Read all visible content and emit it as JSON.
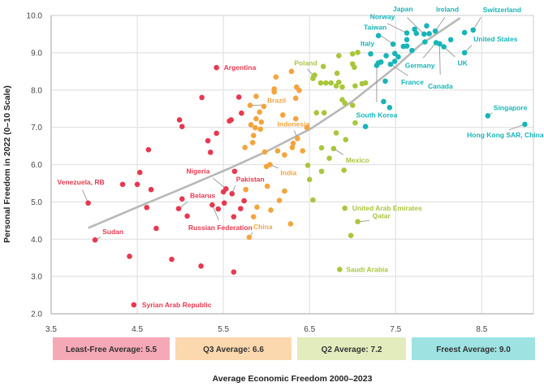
{
  "chart_data": {
    "type": "scatter",
    "title": "",
    "xlabel": "Average Economic Freedom 2000–2023",
    "ylabel": "Personal Freedom in 2022 (0–10 Scale)",
    "xlim": [
      3.5,
      9.1
    ],
    "ylim": [
      2.0,
      10.0
    ],
    "xticks": [
      "3.5",
      "4.5",
      "5.5",
      "6.5",
      "7.5",
      "8.5"
    ],
    "yticks": [
      "2.0",
      "3.0",
      "4.0",
      "5.0",
      "6.0",
      "7.0",
      "8.0",
      "9.0",
      "10.0"
    ],
    "grid": true,
    "colors": {
      "least_free": "#e63950",
      "q3": "#f4a43c",
      "q2": "#a9c63c",
      "freest": "#17b5b8",
      "trend": "#b8b8b8"
    },
    "band_colors": {
      "least_free": "#f5a9b6",
      "q3": "#fcd8ae",
      "q2": "#e2ecbd",
      "freest": "#9ee2e2"
    },
    "quartile_averages": [
      {
        "group": "least_free",
        "label": "Least-Free Average: 5.5",
        "value": 5.5
      },
      {
        "group": "q3",
        "label": "Q3 Average: 6.6",
        "value": 6.6
      },
      {
        "group": "q2",
        "label": "Q2 Average: 7.2",
        "value": 7.2
      },
      {
        "group": "freest",
        "label": "Freest Average: 9.0",
        "value": 9.0
      }
    ],
    "trend_line": [
      [
        3.94,
        4.31
      ],
      [
        4.5,
        4.86
      ],
      [
        5.0,
        5.34
      ],
      [
        5.55,
        5.88
      ],
      [
        6.0,
        6.35
      ],
      [
        6.52,
        6.97
      ],
      [
        7.0,
        7.7
      ],
      [
        7.5,
        8.62
      ],
      [
        7.78,
        9.2
      ],
      [
        8.24,
        9.92
      ]
    ],
    "series": [
      {
        "name": "least_free",
        "points": [
          [
            5.25,
            7.8
          ],
          [
            5.68,
            7.81
          ],
          [
            5.71,
            7.38
          ],
          [
            5.57,
            7.17
          ],
          [
            4.99,
            7.2
          ],
          [
            5.02,
            7.02
          ],
          [
            5.42,
            6.84
          ],
          [
            5.32,
            6.64
          ],
          [
            5.35,
            6.33
          ],
          [
            4.63,
            6.4
          ],
          [
            4.53,
            5.79
          ],
          [
            5.63,
            5.82
          ],
          [
            4.33,
            5.47
          ],
          [
            4.5,
            5.47
          ],
          [
            4.66,
            5.33
          ],
          [
            4.61,
            4.85
          ],
          [
            5.02,
            5.08
          ],
          [
            5.08,
            4.62
          ],
          [
            5.44,
            4.81
          ],
          [
            5.51,
            4.97
          ],
          [
            5.5,
            5.27
          ],
          [
            5.74,
            5.03
          ],
          [
            5.7,
            4.82
          ],
          [
            5.62,
            4.6
          ],
          [
            4.72,
            4.29
          ],
          [
            4.41,
            3.54
          ],
          [
            4.9,
            3.46
          ],
          [
            5.24,
            3.28
          ],
          [
            5.62,
            3.12
          ],
          [
            5.59,
            7.2
          ]
        ]
      },
      {
        "name": "q3",
        "points": [
          [
            6.11,
            8.35
          ],
          [
            6.29,
            8.5
          ],
          [
            6.09,
            8.03
          ],
          [
            6.09,
            7.95
          ],
          [
            6.35,
            8.08
          ],
          [
            6.38,
            7.99
          ],
          [
            5.88,
            7.83
          ],
          [
            5.97,
            7.56
          ],
          [
            6.34,
            7.78
          ],
          [
            5.92,
            7.41
          ],
          [
            6.19,
            7.33
          ],
          [
            5.88,
            7.23
          ],
          [
            5.94,
            7.14
          ],
          [
            6.34,
            7.23
          ],
          [
            5.82,
            7.07
          ],
          [
            5.87,
            6.99
          ],
          [
            5.93,
            6.95
          ],
          [
            6.47,
            6.99
          ],
          [
            5.85,
            6.78
          ],
          [
            5.84,
            6.59
          ],
          [
            6.31,
            6.57
          ],
          [
            6.3,
            6.46
          ],
          [
            5.75,
            6.46
          ],
          [
            5.98,
            6.34
          ],
          [
            6.13,
            6.37
          ],
          [
            6.21,
            6.26
          ],
          [
            6.42,
            6.37
          ],
          [
            6.0,
            5.95
          ],
          [
            6.01,
            5.42
          ],
          [
            5.76,
            5.33
          ],
          [
            6.21,
            5.29
          ],
          [
            6.15,
            5.04
          ],
          [
            5.89,
            4.86
          ],
          [
            6.05,
            4.78
          ],
          [
            5.85,
            4.6
          ],
          [
            6.28,
            4.41
          ]
        ]
      },
      {
        "name": "q2",
        "points": [
          [
            6.84,
            8.92
          ],
          [
            7.0,
            8.97
          ],
          [
            7.06,
            9.01
          ],
          [
            6.66,
            8.63
          ],
          [
            7.0,
            8.7
          ],
          [
            7.02,
            8.61
          ],
          [
            6.56,
            8.4
          ],
          [
            6.54,
            8.31
          ],
          [
            6.82,
            8.45
          ],
          [
            6.63,
            8.19
          ],
          [
            6.69,
            8.19
          ],
          [
            6.75,
            8.19
          ],
          [
            6.84,
            8.21
          ],
          [
            6.81,
            8.11
          ],
          [
            6.88,
            8.08
          ],
          [
            7.03,
            8.11
          ],
          [
            7.11,
            8.17
          ],
          [
            7.15,
            8.19
          ],
          [
            6.88,
            7.74
          ],
          [
            6.91,
            7.65
          ],
          [
            7.0,
            7.59
          ],
          [
            6.58,
            7.39
          ],
          [
            6.67,
            7.39
          ],
          [
            7.03,
            7.12
          ],
          [
            6.81,
            6.85
          ],
          [
            6.92,
            6.67
          ],
          [
            6.64,
            6.45
          ],
          [
            6.78,
            6.43
          ],
          [
            6.73,
            6.17
          ],
          [
            6.48,
            5.98
          ],
          [
            6.64,
            5.82
          ],
          [
            6.9,
            5.85
          ],
          [
            6.5,
            5.6
          ],
          [
            6.54,
            5.05
          ],
          [
            6.98,
            4.1
          ]
        ]
      },
      {
        "name": "freest",
        "points": [
          [
            7.86,
            9.72
          ],
          [
            7.72,
            9.63
          ],
          [
            7.74,
            9.52
          ],
          [
            7.89,
            9.51
          ],
          [
            8.3,
            9.54
          ],
          [
            8.14,
            9.35
          ],
          [
            7.63,
            9.35
          ],
          [
            7.3,
            9.46
          ],
          [
            7.84,
            9.29
          ],
          [
            7.59,
            9.17
          ],
          [
            7.63,
            9.18
          ],
          [
            7.69,
            9.06
          ],
          [
            7.39,
            8.92
          ],
          [
            7.49,
            8.98
          ],
          [
            7.53,
            8.89
          ],
          [
            7.49,
            8.77
          ],
          [
            7.3,
            8.73
          ],
          [
            7.33,
            8.75
          ],
          [
            7.38,
            8.24
          ],
          [
            7.36,
            7.69
          ],
          [
            7.43,
            7.53
          ],
          [
            7.15,
            7.02
          ]
        ]
      }
    ],
    "labeled_points": [
      {
        "name": "Argentina",
        "group": "least_free",
        "x": 5.42,
        "y": 8.6
      },
      {
        "name": "Venezuela, RB",
        "group": "least_free",
        "x": 3.93,
        "y": 4.97
      },
      {
        "name": "Sudan",
        "group": "least_free",
        "x": 4.01,
        "y": 3.98
      },
      {
        "name": "Syrian Arab Republic",
        "group": "least_free",
        "x": 4.46,
        "y": 2.24
      },
      {
        "name": "Nigeria",
        "group": "least_free",
        "x": 5.53,
        "y": 5.35
      },
      {
        "name": "Pakistan",
        "group": "least_free",
        "x": 5.6,
        "y": 5.22
      },
      {
        "name": "Belarus",
        "group": "least_free",
        "x": 4.98,
        "y": 4.82
      },
      {
        "name": "Russian Federation",
        "group": "least_free",
        "x": 5.37,
        "y": 4.92
      },
      {
        "name": "China",
        "group": "q3",
        "x": 5.8,
        "y": 4.05
      },
      {
        "name": "India",
        "group": "q3",
        "x": 6.04,
        "y": 6.0
      },
      {
        "name": "Indonesia",
        "group": "q3",
        "x": 6.36,
        "y": 6.7
      },
      {
        "name": "Brazil",
        "group": "q3",
        "x": 5.81,
        "y": 7.59
      },
      {
        "name": "Poland",
        "group": "q2",
        "x": 6.55,
        "y": 8.38
      },
      {
        "name": "Mexico",
        "group": "q2",
        "x": 6.78,
        "y": 6.43
      },
      {
        "name": "United Arab Emirates",
        "group": "q2",
        "x": 6.91,
        "y": 4.83
      },
      {
        "name": "Qatar",
        "group": "q2",
        "x": 7.06,
        "y": 4.47
      },
      {
        "name": "Saudi Arabia",
        "group": "q2",
        "x": 6.85,
        "y": 3.19
      },
      {
        "name": "South Korea",
        "group": "freest",
        "x": 7.28,
        "y": 8.66
      },
      {
        "name": "Italy",
        "group": "freest",
        "x": 7.21,
        "y": 8.97
      },
      {
        "name": "Taiwan",
        "group": "freest",
        "x": 7.47,
        "y": 9.23
      },
      {
        "name": "Norway",
        "group": "freest",
        "x": 7.63,
        "y": 9.53
      },
      {
        "name": "Japan",
        "group": "freest",
        "x": 7.83,
        "y": 9.5
      },
      {
        "name": "Ireland",
        "group": "freest",
        "x": 7.96,
        "y": 9.58
      },
      {
        "name": "Switzerland",
        "group": "freest",
        "x": 8.4,
        "y": 9.61
      },
      {
        "name": "United States",
        "group": "freest",
        "x": 8.3,
        "y": 9.0
      },
      {
        "name": "Germany",
        "group": "freest",
        "x": 7.97,
        "y": 9.27
      },
      {
        "name": "UK",
        "group": "freest",
        "x": 8.06,
        "y": 9.16
      },
      {
        "name": "Canada",
        "group": "freest",
        "x": 8.01,
        "y": 9.24
      },
      {
        "name": "France",
        "group": "freest",
        "x": 7.44,
        "y": 8.69
      },
      {
        "name": "Singapore",
        "group": "freest",
        "x": 8.57,
        "y": 7.31
      },
      {
        "name": "Hong Kong SAR, China",
        "group": "freest",
        "x": 9.0,
        "y": 7.08
      }
    ]
  }
}
